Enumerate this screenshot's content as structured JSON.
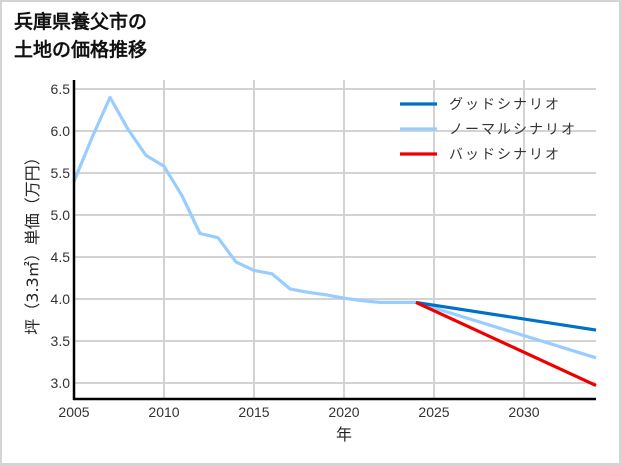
{
  "title_lines": [
    "兵庫県養父市の",
    "土地の価格推移"
  ],
  "chart_data": {
    "type": "line",
    "title": "兵庫県養父市の土地の価格推移",
    "xlabel": "年",
    "ylabel": "坪（3.3㎡）単価（万円）",
    "xlim": [
      2005,
      2034
    ],
    "ylim": [
      2.8,
      6.55
    ],
    "xticks": [
      2005,
      2010,
      2015,
      2020,
      2025,
      2030
    ],
    "yticks": [
      3.0,
      3.5,
      4.0,
      4.5,
      5.0,
      5.5,
      6.0,
      6.5
    ],
    "ytick_labels": [
      "3.0",
      "3.5",
      "4.0",
      "4.5",
      "5.0",
      "5.5",
      "6.0",
      "6.5"
    ],
    "grid": true,
    "legend_position": "upper right",
    "series": [
      {
        "name": "グッドシナリオ",
        "color": "#0070c8",
        "x": [
          2024,
          2034
        ],
        "values": [
          3.96,
          3.63
        ]
      },
      {
        "name": "ノーマルシナリオ",
        "color": "#99ccff",
        "x": [
          2005,
          2006,
          2007,
          2008,
          2009,
          2010,
          2011,
          2012,
          2013,
          2014,
          2015,
          2016,
          2017,
          2018,
          2019,
          2020,
          2021,
          2022,
          2023,
          2024,
          2034
        ],
        "values": [
          5.4,
          5.92,
          6.4,
          6.02,
          5.71,
          5.58,
          5.23,
          4.78,
          4.73,
          4.44,
          4.34,
          4.3,
          4.12,
          4.08,
          4.05,
          4.01,
          3.98,
          3.96,
          3.96,
          3.96,
          3.3
        ]
      },
      {
        "name": "バッドシナリオ",
        "color": "#ee0000",
        "x": [
          2024,
          2034
        ],
        "values": [
          3.96,
          2.97
        ]
      }
    ]
  }
}
